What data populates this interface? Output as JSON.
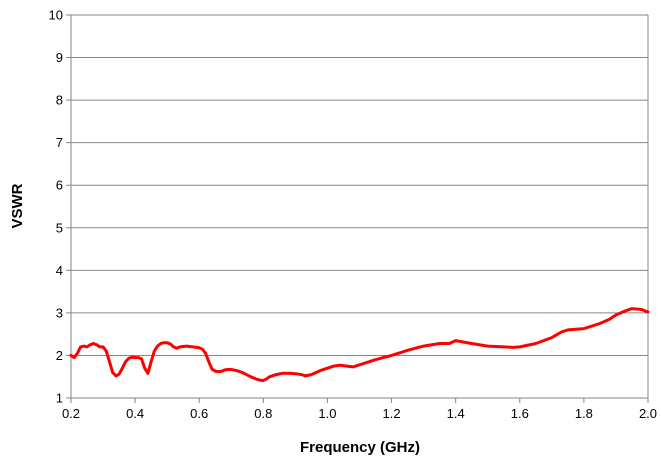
{
  "chart_data": {
    "type": "line",
    "title": "",
    "xlabel": "Frequency (GHz)",
    "ylabel": "VSWR",
    "xlim": [
      0.2,
      2.0
    ],
    "ylim": [
      1,
      10
    ],
    "xticks": [
      "0.2",
      "0.4",
      "0.6",
      "0.8",
      "1.0",
      "1.2",
      "1.4",
      "1.6",
      "1.8",
      "2.0"
    ],
    "yticks": [
      "1",
      "2",
      "3",
      "4",
      "5",
      "6",
      "7",
      "8",
      "9",
      "10"
    ],
    "grid": "horizontal",
    "legend": "none",
    "series": [
      {
        "color": "#ff0000",
        "x": [
          0.2,
          0.21,
          0.22,
          0.23,
          0.24,
          0.25,
          0.26,
          0.27,
          0.28,
          0.29,
          0.3,
          0.31,
          0.32,
          0.33,
          0.34,
          0.35,
          0.36,
          0.37,
          0.38,
          0.39,
          0.4,
          0.41,
          0.42,
          0.43,
          0.44,
          0.45,
          0.46,
          0.47,
          0.48,
          0.49,
          0.5,
          0.51,
          0.52,
          0.53,
          0.54,
          0.55,
          0.56,
          0.57,
          0.58,
          0.59,
          0.6,
          0.61,
          0.62,
          0.63,
          0.64,
          0.65,
          0.66,
          0.67,
          0.68,
          0.69,
          0.7,
          0.72,
          0.74,
          0.76,
          0.78,
          0.79,
          0.8,
          0.81,
          0.82,
          0.84,
          0.86,
          0.88,
          0.9,
          0.92,
          0.93,
          0.95,
          0.98,
          1.0,
          1.02,
          1.04,
          1.06,
          1.08,
          1.1,
          1.15,
          1.2,
          1.25,
          1.3,
          1.35,
          1.38,
          1.4,
          1.45,
          1.5,
          1.55,
          1.58,
          1.6,
          1.65,
          1.7,
          1.73,
          1.75,
          1.78,
          1.8,
          1.85,
          1.88,
          1.9,
          1.93,
          1.95,
          1.98,
          2.0
        ],
        "y": [
          2.0,
          1.95,
          2.05,
          2.2,
          2.22,
          2.2,
          2.25,
          2.28,
          2.25,
          2.2,
          2.2,
          2.1,
          1.85,
          1.6,
          1.52,
          1.56,
          1.7,
          1.85,
          1.93,
          1.96,
          1.95,
          1.95,
          1.92,
          1.7,
          1.58,
          1.85,
          2.1,
          2.22,
          2.28,
          2.3,
          2.3,
          2.27,
          2.2,
          2.17,
          2.2,
          2.21,
          2.22,
          2.21,
          2.2,
          2.19,
          2.18,
          2.15,
          2.05,
          1.85,
          1.68,
          1.63,
          1.62,
          1.63,
          1.66,
          1.67,
          1.67,
          1.64,
          1.58,
          1.5,
          1.44,
          1.42,
          1.41,
          1.45,
          1.5,
          1.55,
          1.58,
          1.58,
          1.57,
          1.55,
          1.52,
          1.55,
          1.65,
          1.7,
          1.75,
          1.77,
          1.75,
          1.73,
          1.78,
          1.9,
          2.0,
          2.12,
          2.22,
          2.28,
          2.28,
          2.35,
          2.28,
          2.22,
          2.2,
          2.19,
          2.2,
          2.28,
          2.42,
          2.55,
          2.6,
          2.62,
          2.63,
          2.75,
          2.85,
          2.95,
          3.05,
          3.1,
          3.08,
          3.02
        ]
      }
    ]
  }
}
